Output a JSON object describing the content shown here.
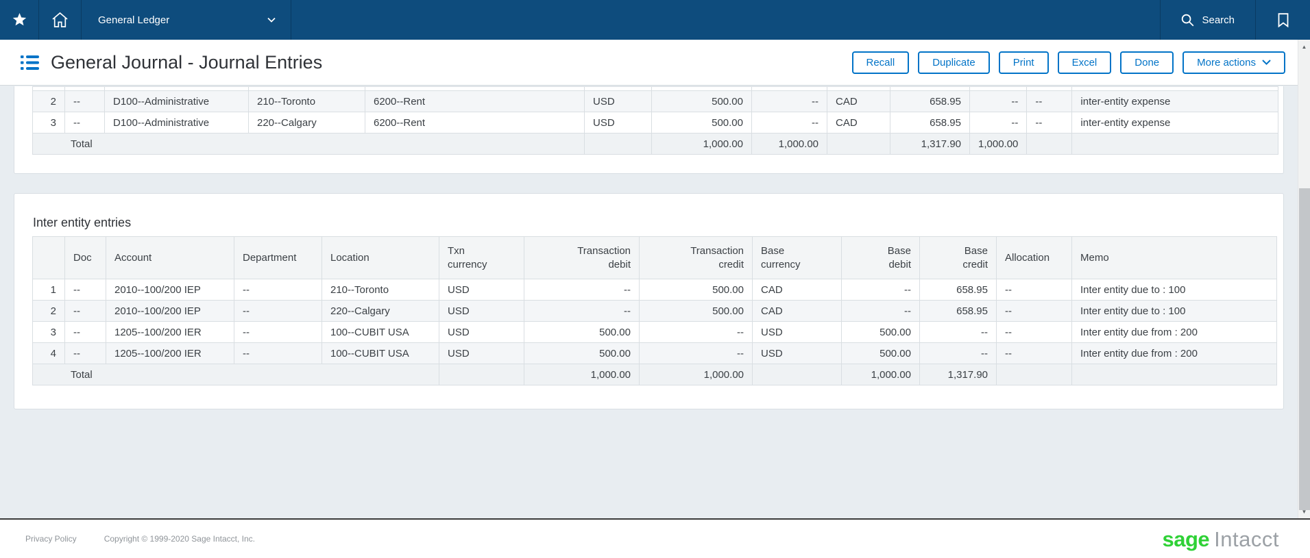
{
  "nav": {
    "app_menu_label": "General Ledger",
    "search_label": "Search"
  },
  "header": {
    "title": "General Journal - Journal Entries",
    "buttons": [
      "Recall",
      "Duplicate",
      "Print",
      "Excel",
      "Done"
    ],
    "more_actions_label": "More actions"
  },
  "journal_table": {
    "rows": [
      {
        "num": "2",
        "doc": "--",
        "department": "D100--Administrative",
        "location": "210--Toronto",
        "account": "6200--Rent",
        "txn_currency": "USD",
        "txn_debit": "500.00",
        "txn_credit": "--",
        "base_currency": "CAD",
        "base_debit": "658.95",
        "base_credit": "--",
        "allocation": "--",
        "memo": "inter-entity expense"
      },
      {
        "num": "3",
        "doc": "--",
        "department": "D100--Administrative",
        "location": "220--Calgary",
        "account": "6200--Rent",
        "txn_currency": "USD",
        "txn_debit": "500.00",
        "txn_credit": "--",
        "base_currency": "CAD",
        "base_debit": "658.95",
        "base_credit": "--",
        "allocation": "--",
        "memo": "inter-entity expense"
      }
    ],
    "total": {
      "label": "Total",
      "txn_debit": "1,000.00",
      "txn_credit": "1,000.00",
      "base_debit": "1,317.90",
      "base_credit": "1,000.00"
    }
  },
  "inter_entity": {
    "section_title": "Inter entity entries",
    "columns": [
      "",
      "Doc",
      "Account",
      "Department",
      "Location",
      "Txn currency",
      "Transaction debit",
      "Transaction credit",
      "Base currency",
      "Base debit",
      "Base credit",
      "Allocation",
      "Memo"
    ],
    "rows": [
      {
        "num": "1",
        "doc": "--",
        "account": "2010--100/200 IEP",
        "department": "--",
        "location": "210--Toronto",
        "txn_currency": "USD",
        "txn_debit": "--",
        "txn_credit": "500.00",
        "base_currency": "CAD",
        "base_debit": "--",
        "base_credit": "658.95",
        "allocation": "--",
        "memo": "Inter entity due to : 100"
      },
      {
        "num": "2",
        "doc": "--",
        "account": "2010--100/200 IEP",
        "department": "--",
        "location": "220--Calgary",
        "txn_currency": "USD",
        "txn_debit": "--",
        "txn_credit": "500.00",
        "base_currency": "CAD",
        "base_debit": "--",
        "base_credit": "658.95",
        "allocation": "--",
        "memo": "Inter entity due to : 100"
      },
      {
        "num": "3",
        "doc": "--",
        "account": "1205--100/200 IER",
        "department": "--",
        "location": "100--CUBIT USA",
        "txn_currency": "USD",
        "txn_debit": "500.00",
        "txn_credit": "--",
        "base_currency": "USD",
        "base_debit": "500.00",
        "base_credit": "--",
        "allocation": "--",
        "memo": "Inter entity due from : 200"
      },
      {
        "num": "4",
        "doc": "--",
        "account": "1205--100/200 IER",
        "department": "--",
        "location": "100--CUBIT USA",
        "txn_currency": "USD",
        "txn_debit": "500.00",
        "txn_credit": "--",
        "base_currency": "USD",
        "base_debit": "500.00",
        "base_credit": "--",
        "allocation": "--",
        "memo": "Inter entity due from : 200"
      }
    ],
    "total": {
      "label": "Total",
      "txn_debit": "1,000.00",
      "txn_credit": "1,000.00",
      "base_debit": "1,000.00",
      "base_credit": "1,317.90"
    }
  },
  "scrollbar": {
    "up_glyph": "▲",
    "down_glyph": "▼"
  },
  "footer": {
    "privacy_label": "Privacy Policy",
    "copyright": "Copyright © 1999-2020 Sage Intacct, Inc.",
    "logo_sage": "sage",
    "logo_intacct": "Intacct"
  },
  "icons": {
    "favorites": "star-icon",
    "home": "home-icon",
    "app_menu_caret": "chevron-down-icon",
    "search": "search-icon",
    "bookmark": "bookmark-icon",
    "page_header": "list-icon",
    "more_actions_caret": "chevron-down-icon"
  },
  "colors": {
    "nav_blue": "#0E4C7D",
    "accent_blue": "#0173C7",
    "page_background": "#E8EDF1",
    "sage_green": "#2FD136",
    "grid_border": "#D9DEE2",
    "total_border": "#6E7981"
  }
}
